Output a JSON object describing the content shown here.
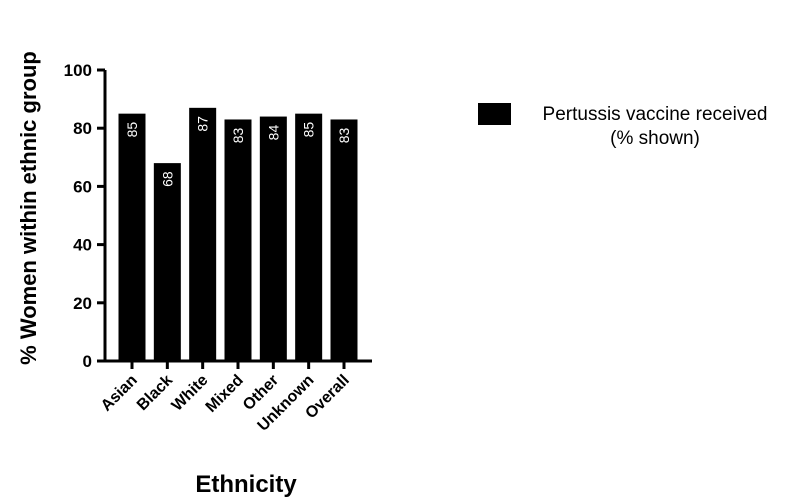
{
  "chart_data": {
    "type": "bar",
    "title": "",
    "xlabel": "Ethnicity",
    "ylabel": "% Women within ethnic group",
    "ylim": [
      0,
      100
    ],
    "yticks": [
      0,
      20,
      40,
      60,
      80,
      100
    ],
    "categories": [
      "Asian",
      "Black",
      "White",
      "Mixed",
      "Other",
      "Unknown",
      "Overall"
    ],
    "series": [
      {
        "name": "Pertussis vaccine received (% shown)",
        "values": [
          85,
          68,
          87,
          83,
          84,
          85,
          83
        ],
        "color": "#000000"
      }
    ],
    "data_labels": [
      "85",
      "68",
      "87",
      "83",
      "84",
      "85",
      "83"
    ],
    "legend": {
      "line1": "Pertussis vaccine received",
      "line2": "(% shown)",
      "position": "right"
    },
    "grid": false
  }
}
